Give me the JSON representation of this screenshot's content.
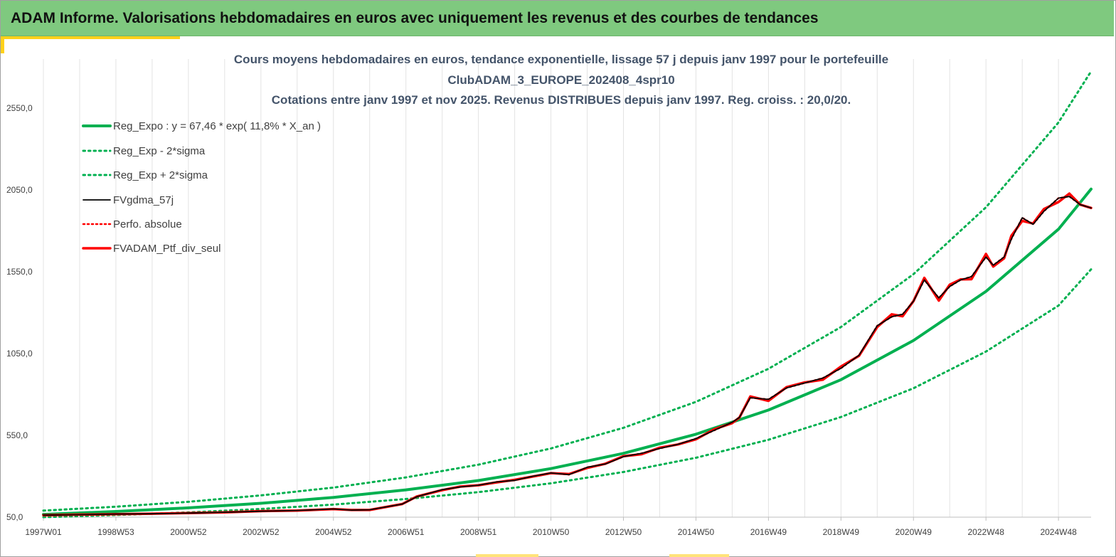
{
  "header": {
    "title": "ADAM Informe. Valorisations hebdomadaires en euros avec uniquement les revenus et des courbes de tendances"
  },
  "colors": {
    "banner": "#7fc97f",
    "accent": "#ffd11a",
    "reg_expo": "#00b050",
    "sigma": "#00b050",
    "fvgdma": "#000000",
    "perfo": "#ff0000",
    "ptf": "#ff0000",
    "title_text": "#44546a"
  },
  "chart_data": {
    "type": "line",
    "title_lines": [
      "Cours moyens hebdomadaires  en euros, tendance exponentielle, lissage 57 j depuis janv 1997 pour le portefeuille",
      "ClubADAM_3_EUROPE_202408_4spr10",
      "Cotations  entre janv 1997 et nov 2025. Revenus DISTRIBUES depuis janv 1997. Reg. croiss. : 20,0/20."
    ],
    "x_range": [
      1997.0,
      2025.9
    ],
    "ylim": [
      50,
      2850
    ],
    "y_ticks": [
      {
        "value": 50,
        "label": "50,0"
      },
      {
        "value": 550,
        "label": "550,0"
      },
      {
        "value": 1050,
        "label": "1050,0"
      },
      {
        "value": 1550,
        "label": "1550,0"
      },
      {
        "value": 2050,
        "label": "2050,0"
      },
      {
        "value": 2550,
        "label": "2550,0"
      }
    ],
    "x_ticks": [
      {
        "value": 1997.0,
        "label": "1997W01"
      },
      {
        "value": 1999.0,
        "label": "1998W53"
      },
      {
        "value": 2001.0,
        "label": "2000W52"
      },
      {
        "value": 2003.0,
        "label": "2002W52"
      },
      {
        "value": 2005.0,
        "label": "2004W52"
      },
      {
        "value": 2007.0,
        "label": "2006W51"
      },
      {
        "value": 2009.0,
        "label": "2008W51"
      },
      {
        "value": 2011.0,
        "label": "2010W50"
      },
      {
        "value": 2013.0,
        "label": "2012W50"
      },
      {
        "value": 2015.0,
        "label": "2014W50"
      },
      {
        "value": 2017.0,
        "label": "2016W49"
      },
      {
        "value": 2019.0,
        "label": "2018W49"
      },
      {
        "value": 2021.0,
        "label": "2020W49"
      },
      {
        "value": 2023.0,
        "label": "2022W48"
      },
      {
        "value": 2025.0,
        "label": "2024W48"
      }
    ],
    "grid": "vertical",
    "legend_position": "top-left",
    "series": [
      {
        "name": "Reg_Expo : y = 67,46 * exp( 11,8% *  X_an )",
        "style": "solid",
        "color": "#00b050",
        "x": [
          1997,
          1999,
          2001,
          2003,
          2005,
          2007,
          2009,
          2011,
          2013,
          2015,
          2017,
          2019,
          2021,
          2023,
          2025,
          2025.9
        ],
        "y": [
          67,
          85,
          107,
          135,
          171,
          217,
          274,
          347,
          440,
          557,
          705,
          890,
          1130,
          1430,
          1810,
          2055
        ]
      },
      {
        "name": "Reg_Exp - 2*sigma",
        "style": "dotted",
        "color": "#00b050",
        "x": [
          1997,
          1999,
          2001,
          2003,
          2005,
          2007,
          2009,
          2011,
          2013,
          2015,
          2017,
          2019,
          2021,
          2023,
          2025,
          2025.9
        ],
        "y": [
          50,
          63,
          79,
          100,
          127,
          161,
          203,
          257,
          326,
          413,
          523,
          662,
          838,
          1062,
          1343,
          1565
        ]
      },
      {
        "name": "Reg_Exp + 2*sigma",
        "style": "dotted",
        "color": "#00b050",
        "x": [
          1997,
          1999,
          2001,
          2003,
          2005,
          2007,
          2009,
          2011,
          2013,
          2015,
          2017,
          2019,
          2021,
          2023,
          2025,
          2025.9
        ],
        "y": [
          90,
          114,
          144,
          183,
          231,
          293,
          371,
          470,
          596,
          755,
          957,
          1212,
          1535,
          1944,
          2462,
          2775
        ]
      },
      {
        "name": "FVgdma_57j",
        "style": "solid",
        "color": "#000000",
        "x": [
          1997,
          1998,
          1999,
          2000,
          2001,
          2002,
          2003,
          2004,
          2005,
          2005.5,
          2006,
          2006.9,
          2007.3,
          2008,
          2008.5,
          2009,
          2009.5,
          2010,
          2010.5,
          2011,
          2011.5,
          2012,
          2012.5,
          2013,
          2013.5,
          2014,
          2014.5,
          2015,
          2015.5,
          2016,
          2016.2,
          2016.5,
          2017,
          2017.5,
          2018,
          2018.5,
          2019,
          2019.5,
          2020,
          2020.4,
          2020.7,
          2021,
          2021.3,
          2021.7,
          2022,
          2022.3,
          2022.6,
          2023,
          2023.2,
          2023.5,
          2023.7,
          2024,
          2024.3,
          2024.6,
          2025,
          2025.3,
          2025.6,
          2025.9
        ],
        "y": [
          62,
          65,
          69,
          71,
          75,
          80,
          86,
          91,
          100,
          93,
          95,
          130,
          175,
          218,
          235,
          245,
          265,
          275,
          300,
          320,
          310,
          355,
          375,
          420,
          440,
          470,
          495,
          530,
          580,
          630,
          660,
          780,
          770,
          840,
          870,
          900,
          960,
          1040,
          1220,
          1275,
          1290,
          1370,
          1500,
          1390,
          1460,
          1500,
          1520,
          1640,
          1590,
          1640,
          1750,
          1880,
          1840,
          1920,
          2000,
          2010,
          1960,
          1940
        ]
      },
      {
        "name": "Perfo. absolue",
        "style": "dotted",
        "color": "#ff0000",
        "x": [
          1997,
          1998,
          1999,
          2000,
          2001,
          2002,
          2003,
          2004,
          2005,
          2005.5,
          2006,
          2006.9,
          2007.3,
          2008,
          2008.5,
          2009,
          2009.5,
          2010,
          2010.5,
          2011,
          2011.5,
          2012,
          2012.5,
          2013,
          2013.5,
          2014,
          2014.5,
          2015,
          2015.5,
          2016,
          2016.2,
          2016.5,
          2017,
          2017.5,
          2018,
          2018.5,
          2019,
          2019.5,
          2020,
          2020.4,
          2020.7,
          2021,
          2021.3,
          2021.7,
          2022,
          2022.3,
          2022.6,
          2023,
          2023.2,
          2023.5,
          2023.7,
          2024,
          2024.3,
          2024.6,
          2025,
          2025.3,
          2025.6,
          2025.9
        ],
        "y": [
          62,
          65,
          69,
          71,
          75,
          80,
          86,
          91,
          100,
          93,
          95,
          130,
          175,
          218,
          235,
          245,
          265,
          275,
          300,
          320,
          310,
          355,
          375,
          420,
          440,
          470,
          495,
          530,
          580,
          630,
          660,
          780,
          770,
          840,
          870,
          900,
          960,
          1040,
          1220,
          1275,
          1290,
          1370,
          1500,
          1390,
          1460,
          1500,
          1520,
          1640,
          1590,
          1640,
          1750,
          1880,
          1840,
          1920,
          2000,
          2010,
          1960,
          1940
        ]
      },
      {
        "name": "FVADAM_Ptf_div_seul",
        "style": "solid",
        "color": "#ff0000",
        "x": [
          1997,
          1998,
          1999,
          2000,
          2001,
          2002,
          2003,
          2004,
          2005,
          2005.5,
          2006,
          2006.9,
          2007.3,
          2008,
          2008.5,
          2009,
          2009.5,
          2010,
          2010.5,
          2011,
          2011.5,
          2012,
          2012.5,
          2013,
          2013.5,
          2014,
          2014.5,
          2015,
          2015.5,
          2016,
          2016.2,
          2016.5,
          2017,
          2017.5,
          2018,
          2018.5,
          2019,
          2019.5,
          2020,
          2020.4,
          2020.7,
          2021,
          2021.3,
          2021.7,
          2022,
          2022.3,
          2022.6,
          2023,
          2023.2,
          2023.5,
          2023.7,
          2024,
          2024.3,
          2024.6,
          2025,
          2025.3,
          2025.6,
          2025.9
        ],
        "y": [
          62,
          65,
          69,
          71,
          75,
          80,
          86,
          91,
          100,
          93,
          95,
          130,
          175,
          218,
          235,
          245,
          265,
          275,
          300,
          320,
          310,
          355,
          375,
          420,
          440,
          470,
          495,
          530,
          580,
          630,
          660,
          780,
          770,
          840,
          870,
          900,
          960,
          1040,
          1220,
          1275,
          1290,
          1370,
          1500,
          1390,
          1460,
          1500,
          1520,
          1640,
          1590,
          1640,
          1750,
          1880,
          1840,
          1920,
          2000,
          2010,
          1960,
          1940
        ]
      }
    ]
  }
}
